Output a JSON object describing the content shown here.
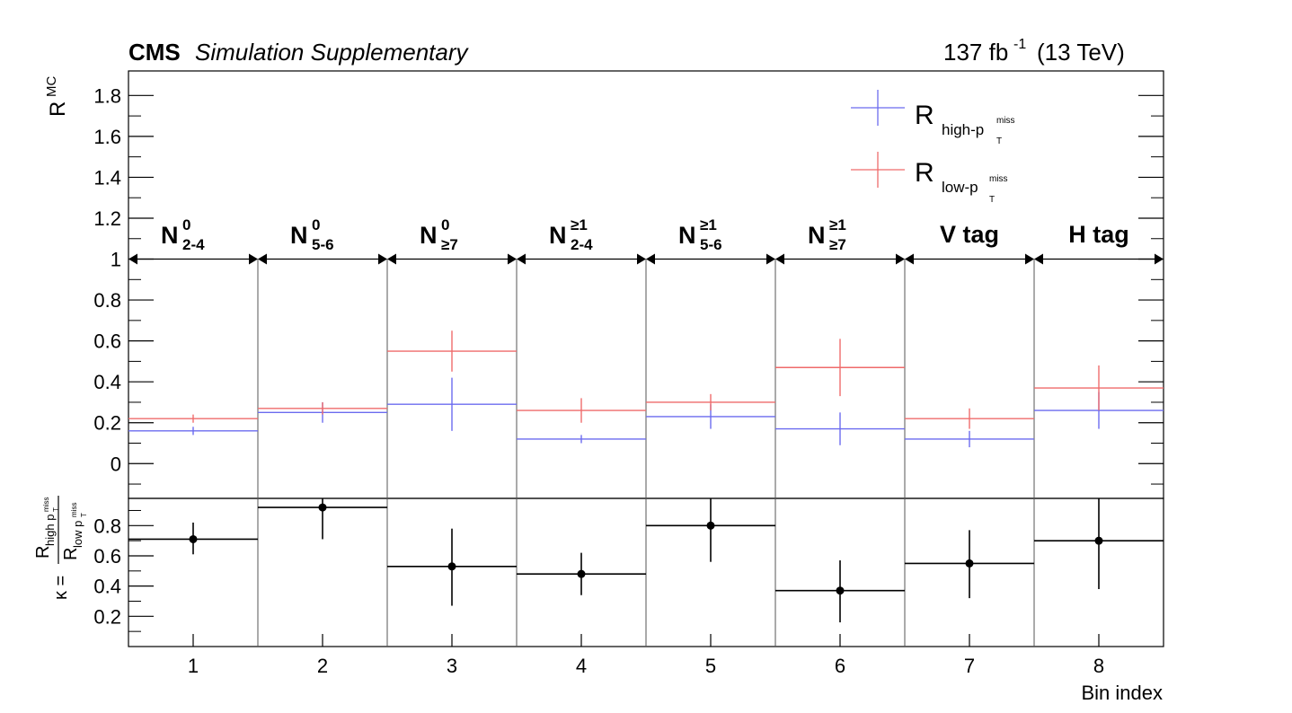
{
  "header": {
    "experiment": "CMS",
    "status": "Simulation Supplementary",
    "lumi_value": "137 fb",
    "lumi_exponent": "-1",
    "energy": "(13 TeV)"
  },
  "chart_data": [
    {
      "type": "line",
      "panel": "upper",
      "ylabel": "R",
      "ylabel_superscript": "MC",
      "ylim": [
        -0.17,
        1.92
      ],
      "yticks": [
        "0",
        "0.2",
        "0.4",
        "0.6",
        "0.8",
        "1",
        "1.2",
        "1.4",
        "1.6",
        "1.8"
      ],
      "ytick_values": [
        0,
        0.2,
        0.4,
        0.6,
        0.8,
        1.0,
        1.2,
        1.4,
        1.6,
        1.8
      ],
      "x": [
        1,
        2,
        3,
        4,
        5,
        6,
        7,
        8
      ],
      "xlim": [
        0.5,
        8.5
      ],
      "series": [
        {
          "name": "R",
          "name_subscript": "high-p",
          "name_sub_sub": "T",
          "name_sub_sup": "miss",
          "color": "#6b6bef",
          "values": [
            0.16,
            0.25,
            0.29,
            0.12,
            0.23,
            0.17,
            0.12,
            0.26
          ],
          "errors": [
            0.02,
            0.05,
            0.13,
            0.02,
            0.06,
            0.08,
            0.04,
            0.09
          ]
        },
        {
          "name": "R",
          "name_subscript": "low-p",
          "name_sub_sub": "T",
          "name_sub_sup": "miss",
          "color": "#ef6b6b",
          "values": [
            0.22,
            0.27,
            0.55,
            0.26,
            0.3,
            0.47,
            0.22,
            0.37
          ],
          "errors": [
            0.02,
            0.03,
            0.1,
            0.06,
            0.04,
            0.14,
            0.05,
            0.11
          ]
        }
      ],
      "category_line_y": 1.0,
      "categories": [
        {
          "main": "N",
          "sup": "0",
          "sub": "2-4"
        },
        {
          "main": "N",
          "sup": "0",
          "sub": "5-6"
        },
        {
          "main": "N",
          "sup": "0",
          "sub": "≥7"
        },
        {
          "main": "N",
          "sup": "≥1",
          "sub": "2-4"
        },
        {
          "main": "N",
          "sup": "≥1",
          "sub": "5-6"
        },
        {
          "main": "N",
          "sup": "≥1",
          "sub": "≥7"
        },
        {
          "main": "V tag",
          "sup": "",
          "sub": ""
        },
        {
          "main": "H tag",
          "sup": "",
          "sub": ""
        }
      ]
    },
    {
      "type": "scatter",
      "panel": "lower",
      "ylabel": "κ =",
      "ratio_num": "R",
      "ratio_num_sub": "high p",
      "ratio_den": "R",
      "ratio_den_sub": "low p",
      "ratio_sub_sub": "T",
      "ratio_sub_sup": "miss",
      "ylim": [
        0.0,
        0.98
      ],
      "yticks": [
        "0.2",
        "0.4",
        "0.6",
        "0.8"
      ],
      "ytick_values": [
        0.2,
        0.4,
        0.6,
        0.8
      ],
      "x": [
        1,
        2,
        3,
        4,
        5,
        6,
        7,
        8
      ],
      "xticks": [
        "1",
        "2",
        "3",
        "4",
        "5",
        "6",
        "7",
        "8"
      ],
      "xlabel": "Bin index",
      "xlim": [
        0.5,
        8.5
      ],
      "values": [
        0.71,
        0.92,
        0.53,
        0.48,
        0.8,
        0.37,
        0.55,
        0.7
      ],
      "err_low": [
        0.1,
        0.21,
        0.26,
        0.14,
        0.24,
        0.21,
        0.23,
        0.32
      ],
      "err_high": [
        0.11,
        0.1,
        0.25,
        0.14,
        0.2,
        0.2,
        0.22,
        0.3
      ],
      "color": "#000000"
    }
  ]
}
